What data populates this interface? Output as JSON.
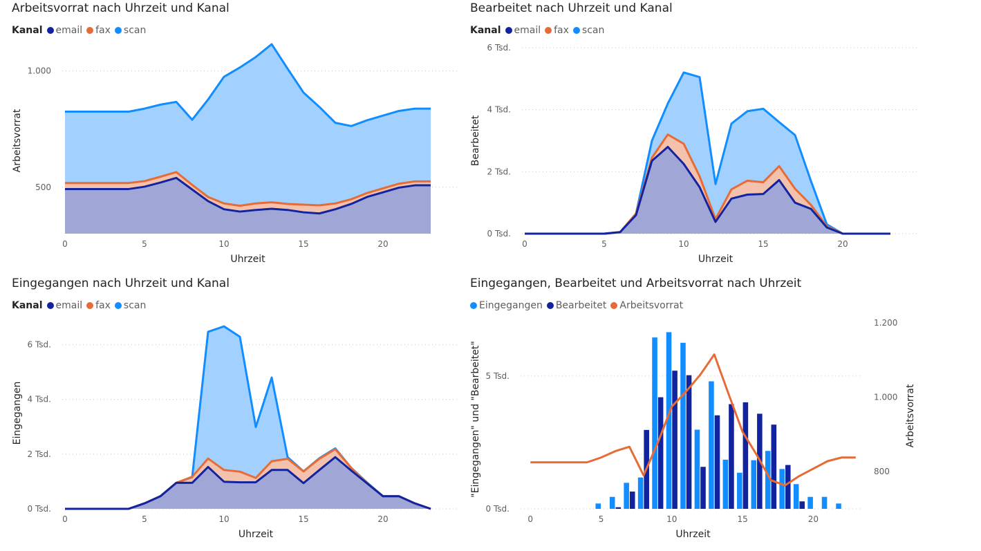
{
  "colors": {
    "email": "#12239E",
    "fax": "#E66C37",
    "scan": "#118DFF"
  },
  "panels": [
    {
      "title": "Arbeitsvorrat nach Uhrzeit und Kanal",
      "legend_title": "Kanal",
      "legend": [
        "email",
        "fax",
        "scan"
      ]
    },
    {
      "title": "Bearbeitet nach Uhrzeit und Kanal",
      "legend_title": "Kanal",
      "legend": [
        "email",
        "fax",
        "scan"
      ]
    },
    {
      "title": "Eingegangen nach Uhrzeit und Kanal",
      "legend_title": "Kanal",
      "legend": [
        "email",
        "fax",
        "scan"
      ]
    },
    {
      "title": "Eingegangen, Bearbeitet und Arbeitsvorrat nach Uhrzeit",
      "legend_title": "",
      "legend": [
        "Eingegangen",
        "Bearbeitet",
        "Arbeitsvorrat"
      ]
    }
  ],
  "chart_data": [
    {
      "type": "area",
      "title": "Arbeitsvorrat nach Uhrzeit und Kanal",
      "xlabel": "Uhrzeit",
      "ylabel": "Arbeitsvorrat",
      "xlim": [
        0,
        23
      ],
      "ylim": [
        300,
        1100
      ],
      "xticks": [
        0,
        5,
        10,
        15,
        20
      ],
      "yticks": [
        500,
        1000
      ],
      "ytick_labels": [
        "500",
        "1.000"
      ],
      "legend_title": "Kanal",
      "x": [
        0,
        1,
        2,
        3,
        4,
        5,
        6,
        7,
        8,
        9,
        10,
        11,
        12,
        13,
        14,
        15,
        16,
        17,
        18,
        19,
        20,
        21,
        22,
        23
      ],
      "series": [
        {
          "name": "email",
          "cumulative": [
            492,
            492,
            492,
            492,
            492,
            502,
            520,
            540,
            490,
            440,
            405,
            395,
            402,
            407,
            402,
            392,
            387,
            405,
            428,
            458,
            478,
            498,
            508,
            508
          ]
        },
        {
          "name": "fax",
          "cumulative": [
            518,
            518,
            518,
            518,
            518,
            526,
            545,
            565,
            510,
            458,
            430,
            420,
            430,
            435,
            428,
            425,
            422,
            430,
            448,
            475,
            495,
            515,
            525,
            525
          ]
        },
        {
          "name": "scan",
          "cumulative": [
            825,
            825,
            825,
            825,
            825,
            838,
            855,
            867,
            790,
            877,
            975,
            1015,
            1060,
            1115,
            1010,
            907,
            845,
            777,
            763,
            788,
            808,
            828,
            838,
            838
          ]
        }
      ]
    },
    {
      "type": "area",
      "title": "Bearbeitet nach Uhrzeit und Kanal",
      "xlabel": "Uhrzeit",
      "ylabel": "Bearbeitet",
      "xlim": [
        0,
        24
      ],
      "ylim": [
        0,
        6000
      ],
      "xticks": [
        0,
        5,
        10,
        15,
        20
      ],
      "yticks": [
        0,
        2000,
        4000,
        6000
      ],
      "ytick_labels": [
        "0 Tsd.",
        "2 Tsd.",
        "4 Tsd.",
        "6 Tsd."
      ],
      "legend_title": "Kanal",
      "x": [
        0,
        1,
        2,
        3,
        4,
        5,
        6,
        7,
        8,
        9,
        10,
        11,
        12,
        13,
        14,
        15,
        16,
        17,
        18,
        19,
        20,
        21,
        22,
        23
      ],
      "series": [
        {
          "name": "email",
          "cumulative": [
            0,
            0,
            0,
            0,
            0,
            0,
            50,
            600,
            2350,
            2800,
            2250,
            1500,
            380,
            1130,
            1260,
            1280,
            1730,
            1000,
            800,
            200,
            0,
            0,
            0,
            0
          ]
        },
        {
          "name": "fax",
          "cumulative": [
            0,
            0,
            0,
            0,
            0,
            0,
            50,
            650,
            2450,
            3200,
            2900,
            1850,
            470,
            1430,
            1710,
            1660,
            2180,
            1450,
            930,
            240,
            0,
            0,
            0,
            0
          ]
        },
        {
          "name": "scan",
          "cumulative": [
            0,
            0,
            0,
            0,
            0,
            0,
            50,
            650,
            3000,
            4200,
            5200,
            5050,
            1600,
            3550,
            3950,
            4030,
            3600,
            3180,
            1700,
            300,
            0,
            0,
            0,
            0
          ]
        }
      ]
    },
    {
      "type": "area",
      "title": "Eingegangen nach Uhrzeit und Kanal",
      "xlabel": "Uhrzeit",
      "ylabel": "Eingegangen",
      "xlim": [
        0,
        24
      ],
      "ylim": [
        0,
        7000
      ],
      "xticks": [
        0,
        5,
        10,
        15,
        20
      ],
      "yticks": [
        0,
        2000,
        4000,
        6000
      ],
      "ytick_labels": [
        "0 Tsd.",
        "2 Tsd.",
        "4 Tsd.",
        "6 Tsd."
      ],
      "legend_title": "Kanal",
      "x": [
        0,
        1,
        2,
        3,
        4,
        5,
        6,
        7,
        8,
        9,
        10,
        11,
        12,
        13,
        14,
        15,
        16,
        17,
        18,
        19,
        20,
        21,
        22,
        23
      ],
      "series": [
        {
          "name": "email",
          "cumulative": [
            0,
            0,
            0,
            0,
            0,
            200,
            460,
            950,
            950,
            1530,
            990,
            970,
            970,
            1420,
            1420,
            940,
            1420,
            1890,
            1400,
            930,
            460,
            460,
            200,
            0
          ]
        },
        {
          "name": "fax",
          "cumulative": [
            0,
            0,
            0,
            0,
            0,
            200,
            460,
            950,
            1170,
            1840,
            1420,
            1360,
            1130,
            1740,
            1830,
            1370,
            1830,
            2180,
            1500,
            940,
            460,
            460,
            200,
            0
          ]
        },
        {
          "name": "scan",
          "cumulative": [
            0,
            0,
            0,
            0,
            0,
            200,
            460,
            950,
            1160,
            6470,
            6670,
            6290,
            2990,
            4800,
            1890,
            1370,
            1850,
            2210,
            1500,
            960,
            460,
            460,
            200,
            0
          ]
        }
      ]
    },
    {
      "type": "bar+line",
      "title": "Eingegangen, Bearbeitet und Arbeitsvorrat nach Uhrzeit",
      "xlabel": "Uhrzeit",
      "ylabel": "\"Eingegangen\" und \"Bearbeitet\"",
      "y2label": "Arbeitsvorrat",
      "xlim": [
        -0.5,
        23.5
      ],
      "ylim": [
        0,
        7000
      ],
      "y2lim": [
        700,
        1200
      ],
      "xticks": [
        0,
        5,
        10,
        15,
        20
      ],
      "yticks": [
        0,
        5000
      ],
      "ytick_labels": [
        "0 Tsd.",
        "5 Tsd."
      ],
      "y2ticks": [
        800,
        1000,
        1200
      ],
      "y2tick_labels": [
        "800",
        "1.000",
        "1.200"
      ],
      "x": [
        0,
        1,
        2,
        3,
        4,
        5,
        6,
        7,
        8,
        9,
        10,
        11,
        12,
        13,
        14,
        15,
        16,
        17,
        18,
        19,
        20,
        21,
        22,
        23
      ],
      "series": [
        {
          "name": "Eingegangen",
          "type": "bar",
          "values": [
            0,
            0,
            0,
            0,
            0,
            200,
            450,
            980,
            1180,
            6450,
            6650,
            6250,
            2980,
            4800,
            1850,
            1360,
            1830,
            2180,
            1500,
            930,
            450,
            450,
            200,
            0
          ]
        },
        {
          "name": "Bearbeitet",
          "type": "bar",
          "values": [
            0,
            0,
            0,
            0,
            0,
            0,
            60,
            650,
            2970,
            4200,
            5200,
            5030,
            1580,
            3520,
            3940,
            4010,
            3580,
            3170,
            1650,
            280,
            0,
            0,
            0,
            0
          ]
        },
        {
          "name": "Arbeitsvorrat",
          "type": "line",
          "values": [
            825,
            825,
            825,
            825,
            825,
            838,
            855,
            867,
            790,
            877,
            975,
            1015,
            1060,
            1115,
            1010,
            907,
            845,
            777,
            763,
            788,
            808,
            828,
            838,
            838
          ]
        }
      ]
    }
  ]
}
